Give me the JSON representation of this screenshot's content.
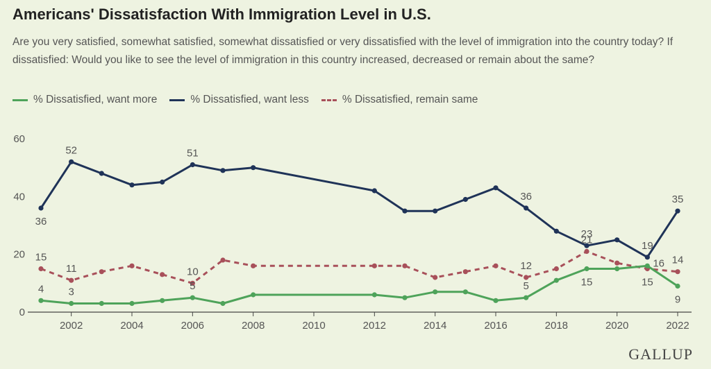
{
  "header": {
    "title": "Americans' Dissatisfaction With Immigration Level in U.S.",
    "subtitle": "Are you very satisfied, somewhat satisfied, somewhat dissatisfied or very dissatisfied with the level of immigration into the country today? If dissatisfied: Would you like to see the level of immigration in this country increased, decreased or remain about the same?"
  },
  "legend": [
    {
      "label": "% Dissatisfied, want more",
      "color": "#4ea35a",
      "style": "solid"
    },
    {
      "label": "% Dissatisfied, want less",
      "color": "#1f3358",
      "style": "solid"
    },
    {
      "label": "% Dissatisfied, remain same",
      "color": "#a8505a",
      "style": "dashed"
    }
  ],
  "brand": {
    "logo_text": "GALLUP"
  },
  "chart_data": {
    "type": "line",
    "title": "Americans' Dissatisfaction With Immigration Level in U.S.",
    "xlabel": "",
    "ylabel": "",
    "xlim": [
      2001,
      2022
    ],
    "ylim": [
      0,
      60
    ],
    "x_ticks": [
      2002,
      2004,
      2006,
      2008,
      2010,
      2012,
      2014,
      2016,
      2018,
      2020,
      2022
    ],
    "y_ticks": [
      0,
      20,
      40,
      60
    ],
    "grid": false,
    "legend_position": "top-left",
    "series": [
      {
        "name": "% Dissatisfied, want more",
        "color": "#4ea35a",
        "dashed": false,
        "x": [
          2001,
          2002,
          2003,
          2004,
          2005,
          2006,
          2007,
          2008,
          2012,
          2013,
          2014,
          2015,
          2016,
          2017,
          2018,
          2019,
          2020,
          2021,
          2022
        ],
        "y": [
          4,
          3,
          3,
          3,
          4,
          5,
          3,
          6,
          6,
          5,
          7,
          7,
          4,
          5,
          11,
          15,
          15,
          16,
          9
        ],
        "labels": [
          {
            "x": 2001,
            "y": 4,
            "text": "4",
            "pos": "above"
          },
          {
            "x": 2002,
            "y": 3,
            "text": "3",
            "pos": "above"
          },
          {
            "x": 2006,
            "y": 5,
            "text": "5",
            "pos": "above"
          },
          {
            "x": 2017,
            "y": 5,
            "text": "5",
            "pos": "above"
          },
          {
            "x": 2019,
            "y": 15,
            "text": "15",
            "pos": "below"
          },
          {
            "x": 2021,
            "y": 16,
            "text": "16",
            "pos": "right"
          },
          {
            "x": 2022,
            "y": 9,
            "text": "9",
            "pos": "below"
          }
        ]
      },
      {
        "name": "% Dissatisfied, want less",
        "color": "#1f3358",
        "dashed": false,
        "x": [
          2001,
          2002,
          2003,
          2004,
          2005,
          2006,
          2007,
          2008,
          2012,
          2013,
          2014,
          2015,
          2016,
          2017,
          2018,
          2019,
          2020,
          2021,
          2022
        ],
        "y": [
          36,
          52,
          48,
          44,
          45,
          51,
          49,
          50,
          42,
          35,
          35,
          39,
          43,
          36,
          28,
          23,
          25,
          19,
          35
        ],
        "labels": [
          {
            "x": 2001,
            "y": 36,
            "text": "36",
            "pos": "below"
          },
          {
            "x": 2002,
            "y": 52,
            "text": "52",
            "pos": "above"
          },
          {
            "x": 2006,
            "y": 51,
            "text": "51",
            "pos": "above"
          },
          {
            "x": 2017,
            "y": 36,
            "text": "36",
            "pos": "above"
          },
          {
            "x": 2019,
            "y": 23,
            "text": "23",
            "pos": "above"
          },
          {
            "x": 2021,
            "y": 19,
            "text": "19",
            "pos": "above"
          },
          {
            "x": 2022,
            "y": 35,
            "text": "35",
            "pos": "above"
          }
        ]
      },
      {
        "name": "% Dissatisfied, remain same",
        "color": "#a8505a",
        "dashed": true,
        "x": [
          2001,
          2002,
          2003,
          2004,
          2005,
          2006,
          2007,
          2008,
          2012,
          2013,
          2014,
          2015,
          2016,
          2017,
          2018,
          2019,
          2020,
          2021,
          2022
        ],
        "y": [
          15,
          11,
          14,
          16,
          13,
          10,
          18,
          16,
          16,
          16,
          12,
          14,
          16,
          12,
          15,
          21,
          17,
          15,
          14
        ],
        "labels": [
          {
            "x": 2001,
            "y": 15,
            "text": "15",
            "pos": "above"
          },
          {
            "x": 2002,
            "y": 11,
            "text": "11",
            "pos": "above"
          },
          {
            "x": 2006,
            "y": 10,
            "text": "10",
            "pos": "above"
          },
          {
            "x": 2017,
            "y": 12,
            "text": "12",
            "pos": "above"
          },
          {
            "x": 2019,
            "y": 21,
            "text": "21",
            "pos": "above"
          },
          {
            "x": 2021,
            "y": 15,
            "text": "15",
            "pos": "below"
          },
          {
            "x": 2022,
            "y": 14,
            "text": "14",
            "pos": "above"
          }
        ]
      }
    ]
  }
}
